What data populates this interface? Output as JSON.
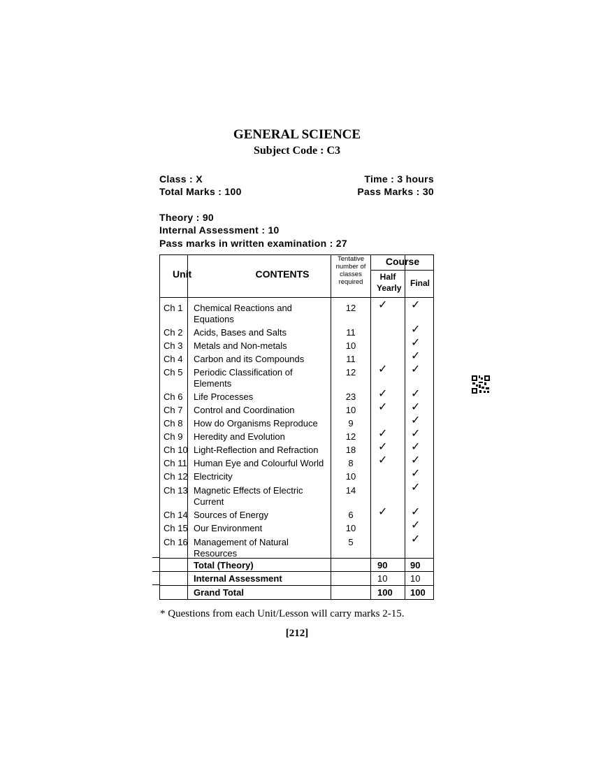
{
  "title": "GENERAL SCIENCE",
  "subject_code": "Subject Code : C3",
  "class": "Class : X",
  "time": "Time : 3 hours",
  "total_marks": "Total Marks : 100",
  "pass_marks": "Pass Marks : 30",
  "theory": "Theory : 90",
  "internal_assessment": "Internal Assessment : 10",
  "pass_written": "Pass marks in written examination : 27",
  "table": {
    "headers": {
      "unit": "Unit",
      "contents": "CONTENTS",
      "classes": "Tentative number of classes required",
      "course": "Course",
      "half_yearly": "Half Yearly",
      "final": "Final"
    },
    "rows": [
      {
        "unit": "Ch 1",
        "content": "Chemical Reactions and Equations",
        "classes": "12",
        "half": true,
        "final": true
      },
      {
        "unit": "Ch 2",
        "content": "Acids, Bases and Salts",
        "classes": "11",
        "half": false,
        "final": true
      },
      {
        "unit": "Ch 3",
        "content": "Metals and Non-metals",
        "classes": "10",
        "half": false,
        "final": true
      },
      {
        "unit": "Ch 4",
        "content": "Carbon and its Compounds",
        "classes": "11",
        "half": false,
        "final": true
      },
      {
        "unit": "Ch 5",
        "content": "Periodic Classification of Elements",
        "classes": "12",
        "half": true,
        "final": true
      },
      {
        "unit": "Ch 6",
        "content": "Life Processes",
        "classes": "23",
        "half": true,
        "final": true
      },
      {
        "unit": "Ch 7",
        "content": "Control and Coordination",
        "classes": "10",
        "half": true,
        "final": true
      },
      {
        "unit": "Ch 8",
        "content": "How do Organisms Reproduce",
        "classes": "9",
        "half": false,
        "final": true
      },
      {
        "unit": "Ch 9",
        "content": "Heredity and Evolution",
        "classes": "12",
        "half": true,
        "final": true
      },
      {
        "unit": "Ch 10",
        "content": "Light-Reflection and Refraction",
        "classes": "18",
        "half": true,
        "final": true
      },
      {
        "unit": "Ch 11",
        "content": "Human Eye and Colourful World",
        "classes": "8",
        "half": true,
        "final": true
      },
      {
        "unit": "Ch 12",
        "content": "Electricity",
        "classes": "10",
        "half": false,
        "final": true
      },
      {
        "unit": "Ch 13",
        "content": "Magnetic Effects of Electric Current",
        "classes": "14",
        "half": false,
        "final": true
      },
      {
        "unit": "Ch 14",
        "content": "Sources of Energy",
        "classes": "6",
        "half": true,
        "final": true
      },
      {
        "unit": "Ch 15",
        "content": "Our Environment",
        "classes": "10",
        "half": false,
        "final": true
      },
      {
        "unit": "Ch 16",
        "content": "Management of Natural Resources",
        "classes": "5",
        "half": false,
        "final": true
      }
    ],
    "totals": [
      {
        "label": "Total (Theory)",
        "half": "90",
        "final": "90",
        "bold": true
      },
      {
        "label": "Internal Assessment",
        "half": "10",
        "final": "10",
        "bold": false
      },
      {
        "label": "Grand Total",
        "half": "100",
        "final": "100",
        "bold": true
      }
    ],
    "tick_symbol": "✓"
  },
  "footnote": "* Questions from each Unit/Lesson will carry marks 2-15.",
  "page_number": "[212]",
  "qr_icon": "qr-code-icon"
}
